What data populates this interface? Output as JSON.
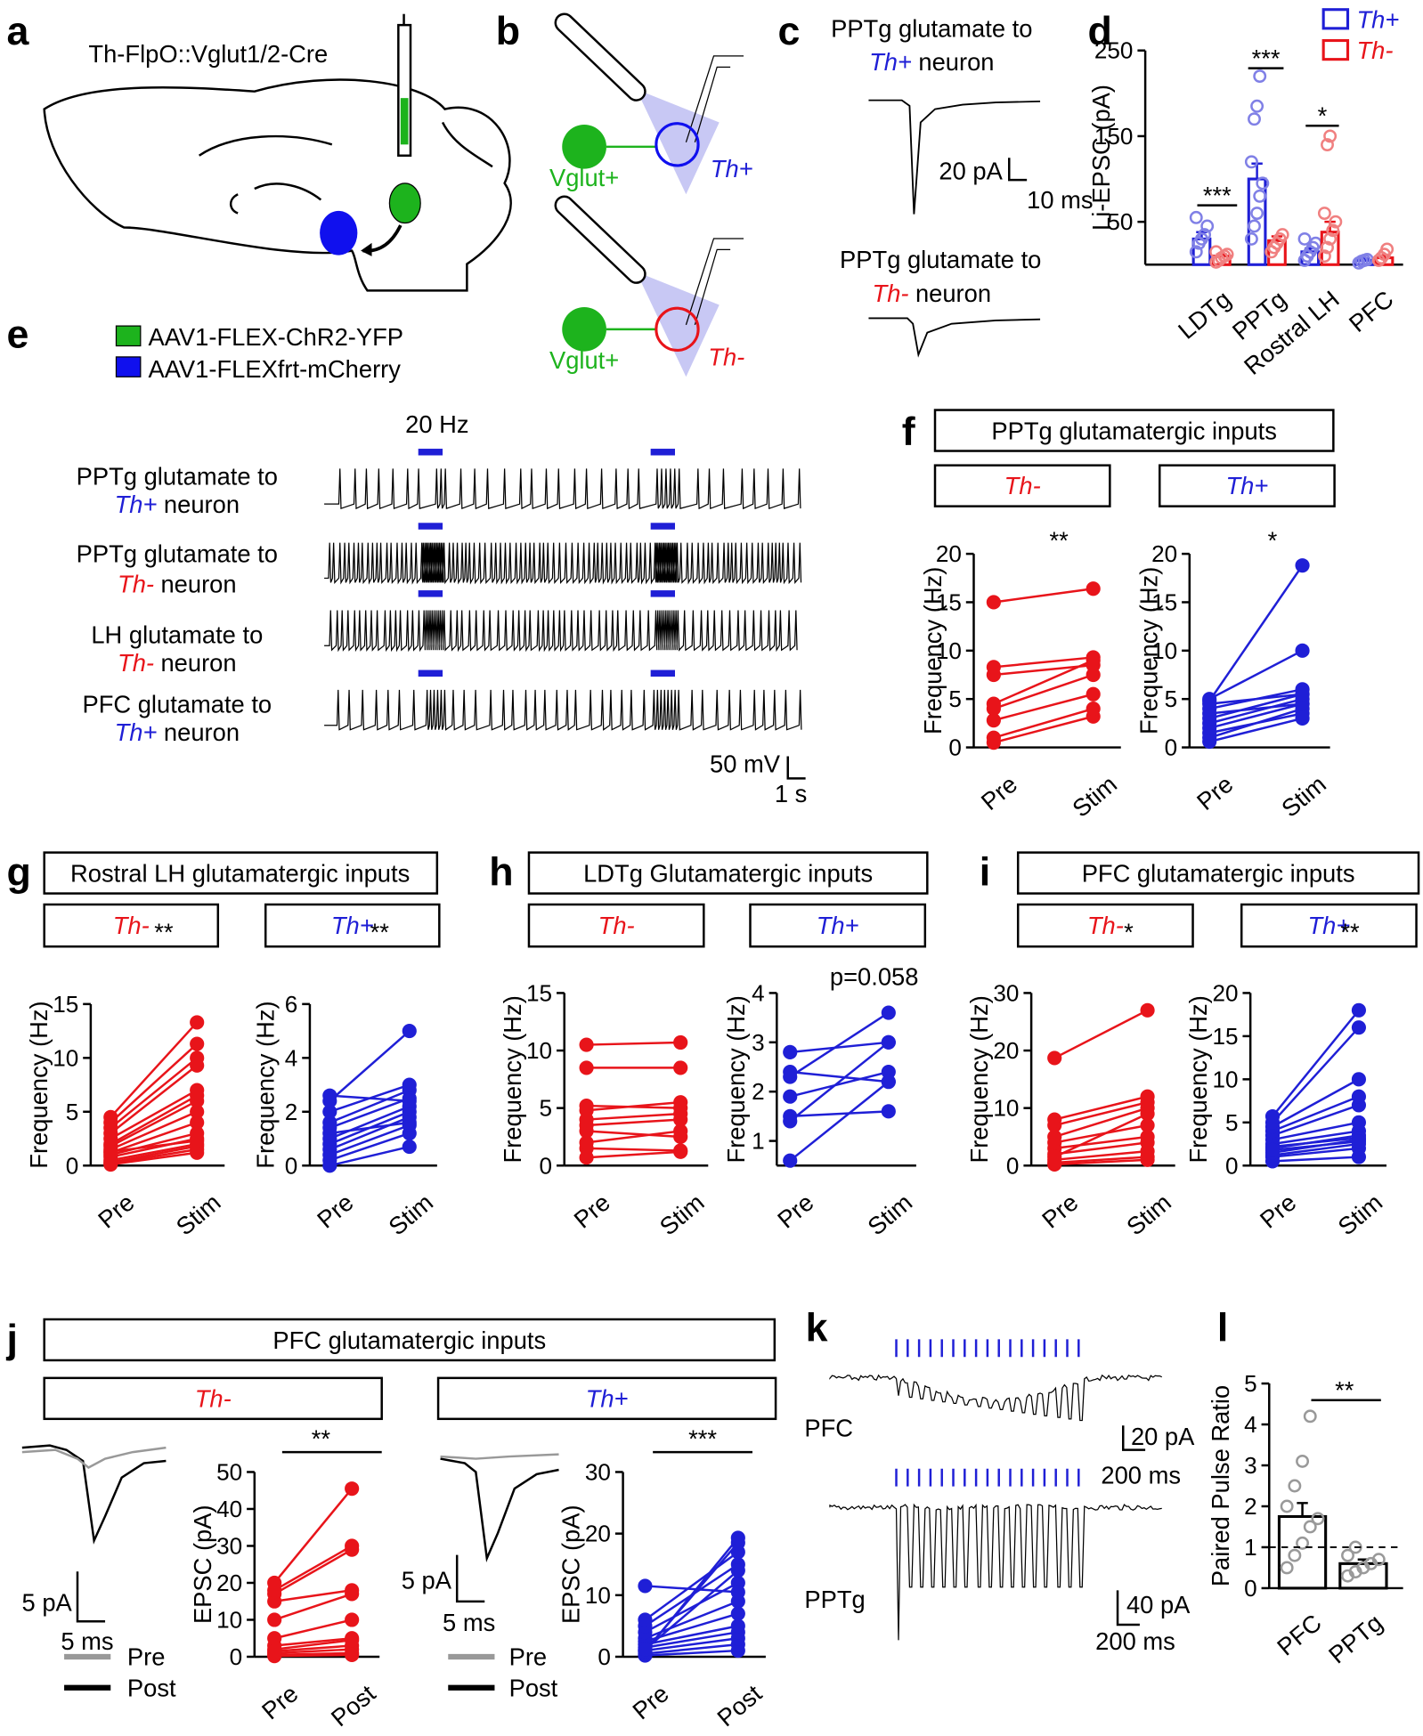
{
  "figure": {
    "panel_letters": [
      "a",
      "b",
      "c",
      "d",
      "e",
      "f",
      "g",
      "h",
      "i",
      "j",
      "k",
      "l"
    ],
    "a": {
      "mouse": "Th-FlpO::Vglut1/2-Cre",
      "legend": [
        "AAV1-FLEX-ChR2-YFP",
        "AAV1-FLEXfrt-mCherry"
      ]
    },
    "b": {
      "source": [
        "Vglut+",
        "Vglut+"
      ],
      "target": [
        "Th+",
        "Th-"
      ]
    },
    "c": {
      "rows": [
        {
          "text": "PPTg glutamate to",
          "cell": "Th+",
          "tail": "neuron"
        },
        {
          "text": "PPTg glutamate to",
          "cell": "Th-",
          "tail": "neuron"
        }
      ],
      "scale": [
        "20 pA",
        "10 ms"
      ]
    },
    "e": {
      "stim": "20 Hz",
      "rows": [
        {
          "text": "PPTg glutamate to",
          "cell": "Th+",
          "tail": "neuron"
        },
        {
          "text": "PPTg glutamate to",
          "cell": "Th-",
          "tail": "neuron"
        },
        {
          "text": "LH glutamate to",
          "cell": "Th-",
          "tail": "neuron"
        },
        {
          "text": "PFC glutamate to",
          "cell": "Th+",
          "tail": "neuron"
        }
      ],
      "scale": [
        "50 mV",
        "1 s"
      ]
    },
    "groups": [
      "PPTg glutamatergic inputs",
      "Rostral LH glutamatergic inputs",
      "LDTg Glutamatergic inputs",
      "PFC glutamatergic inputs",
      "PFC glutamatergic inputs"
    ],
    "j": {
      "legend": [
        "Pre",
        "Post"
      ],
      "scale": [
        [
          "5 pA",
          "5 ms"
        ],
        [
          "5 pA",
          "5 ms"
        ]
      ],
      "legend_th_plus": [
        "Pre",
        "Post"
      ]
    },
    "k": {
      "rows": [
        "PFC",
        "PPTg"
      ],
      "scale": [
        [
          "20 pA",
          "200 ms"
        ],
        [
          "40 pA",
          "200 ms"
        ]
      ]
    }
  },
  "chart_data": [
    {
      "type": "bar",
      "ylabel": "Li-EPSC (pA)",
      "categories": [
        "LDTg",
        "PPTg",
        "Rostral LH",
        "PFC"
      ],
      "series": [
        {
          "name": "Th+",
          "color": "#1f1fd6",
          "point_color": "#8080e6",
          "values": [
            30,
            100,
            15,
            5
          ],
          "errors": [
            8,
            18,
            4,
            2
          ],
          "points": [
            [
              15,
              25,
              30,
              35,
              45,
              55
            ],
            [
              30,
              45,
              60,
              80,
              95,
              120,
              170,
              185,
              220
            ],
            [
              5,
              10,
              15,
              20,
              25,
              30
            ],
            [
              2,
              4,
              5,
              6
            ]
          ]
        },
        {
          "name": "Th-",
          "color": "#e8141a",
          "point_color": "#f08080",
          "values": [
            10,
            28,
            38,
            8
          ],
          "errors": [
            2,
            5,
            12,
            3
          ],
          "points": [
            [
              3,
              5,
              8,
              10,
              12,
              15
            ],
            [
              15,
              20,
              25,
              30,
              35
            ],
            [
              10,
              20,
              30,
              40,
              50,
              60,
              140,
              150
            ],
            [
              5,
              8,
              12,
              18
            ]
          ]
        }
      ],
      "ylim": [
        0,
        250
      ],
      "yticks": [
        50,
        150,
        250
      ],
      "annotations": [
        "***",
        "***",
        "*"
      ],
      "legend": "upper right"
    },
    {
      "type": "paired",
      "title": "Th-",
      "title_color": "#e8141a",
      "color": "#e8141a",
      "annotation": "**",
      "ylabel": "Frequency (Hz)",
      "categories": [
        "Pre",
        "Stim"
      ],
      "pairs": [
        [
          0.5,
          3.2
        ],
        [
          1,
          4
        ],
        [
          2.8,
          5.5
        ],
        [
          4,
          7.5
        ],
        [
          4.5,
          9
        ],
        [
          7.5,
          8.5
        ],
        [
          8.3,
          9.3
        ],
        [
          15,
          16.4
        ]
      ],
      "ylim": [
        0,
        20
      ],
      "yticks": [
        0,
        5,
        10,
        15,
        20
      ]
    },
    {
      "type": "paired",
      "title": "Th+",
      "title_color": "#1f1fd6",
      "color": "#1f1fd6",
      "annotation": "*",
      "ylabel": "Frequency (Hz)",
      "categories": [
        "Pre",
        "Stim"
      ],
      "pairs": [
        [
          0.6,
          3
        ],
        [
          1,
          4
        ],
        [
          1.5,
          3.5
        ],
        [
          2,
          4.5
        ],
        [
          2.5,
          5
        ],
        [
          3,
          5.5
        ],
        [
          3.5,
          4.5
        ],
        [
          4,
          6
        ],
        [
          4.5,
          5.5
        ],
        [
          5,
          10
        ],
        [
          4.8,
          18.8
        ]
      ],
      "ylim": [
        0,
        20
      ],
      "yticks": [
        0,
        5,
        10,
        15,
        20
      ]
    },
    {
      "type": "paired",
      "title": "Th-",
      "title_color": "#e8141a",
      "color": "#e8141a",
      "annotation": "**",
      "ylabel": "Frequency (Hz)",
      "categories": [
        "Pre",
        "Stim"
      ],
      "pairs": [
        [
          0.1,
          1.2
        ],
        [
          0.3,
          1.8
        ],
        [
          0.5,
          2
        ],
        [
          0.8,
          2.5
        ],
        [
          1,
          3
        ],
        [
          1.2,
          4
        ],
        [
          1.5,
          5
        ],
        [
          1.8,
          6
        ],
        [
          2,
          6.5
        ],
        [
          2.5,
          7
        ],
        [
          3,
          9.3
        ],
        [
          3.5,
          10
        ],
        [
          4,
          11.3
        ],
        [
          4.5,
          13.3
        ],
        [
          0.2,
          1.5
        ],
        [
          1.3,
          2.3
        ]
      ],
      "ylim": [
        0,
        15
      ],
      "yticks": [
        0,
        5,
        10,
        15
      ]
    },
    {
      "type": "paired",
      "title": "Th+",
      "title_color": "#1f1fd6",
      "color": "#1f1fd6",
      "annotation": "**",
      "ylabel": "Frequency (Hz)",
      "categories": [
        "Pre",
        "Stim"
      ],
      "pairs": [
        [
          0,
          0.7
        ],
        [
          0.2,
          1.2
        ],
        [
          0.4,
          1.5
        ],
        [
          0.6,
          1.8
        ],
        [
          0.8,
          2
        ],
        [
          1,
          2.2
        ],
        [
          1.2,
          1.6
        ],
        [
          1.4,
          2.5
        ],
        [
          1.6,
          2.8
        ],
        [
          2,
          3
        ],
        [
          2.6,
          2.4
        ],
        [
          2.4,
          5
        ]
      ],
      "ylim": [
        0,
        6
      ],
      "yticks": [
        0,
        2,
        4,
        6
      ]
    },
    {
      "type": "paired",
      "title": "Th-",
      "title_color": "#e8141a",
      "color": "#e8141a",
      "ylabel": "Frequency (Hz)",
      "categories": [
        "Pre",
        "Stim"
      ],
      "pairs": [
        [
          0.7,
          1.2
        ],
        [
          1.5,
          1.3
        ],
        [
          2,
          3
        ],
        [
          3,
          2.5
        ],
        [
          3.5,
          4
        ],
        [
          4,
          4.5
        ],
        [
          4.8,
          5.5
        ],
        [
          5.2,
          5
        ],
        [
          8.5,
          8.5
        ],
        [
          10.5,
          10.7
        ]
      ],
      "ylim": [
        0,
        15
      ],
      "yticks": [
        0,
        5,
        10,
        15
      ]
    },
    {
      "type": "paired",
      "title": "Th+",
      "title_color": "#1f1fd6",
      "color": "#1f1fd6",
      "annotation": "p=0.058",
      "ylabel": "Frequency (Hz)",
      "categories": [
        "Pre",
        "Stim"
      ],
      "pairs": [
        [
          0.6,
          2.2
        ],
        [
          1.5,
          1.6
        ],
        [
          1.4,
          3
        ],
        [
          1.9,
          2.4
        ],
        [
          2.3,
          3.6
        ],
        [
          2.4,
          2.2
        ],
        [
          2.8,
          3
        ]
      ],
      "ylim": [
        0.5,
        4
      ],
      "yticks": [
        1,
        2,
        3,
        4
      ]
    },
    {
      "type": "paired",
      "title": "Th-",
      "title_color": "#e8141a",
      "color": "#e8141a",
      "annotation": "*",
      "ylabel": "Frequency (Hz)",
      "categories": [
        "Pre",
        "Stim"
      ],
      "pairs": [
        [
          0.5,
          1.5
        ],
        [
          1,
          2.5
        ],
        [
          2,
          4
        ],
        [
          3,
          5
        ],
        [
          4,
          7
        ],
        [
          5,
          10
        ],
        [
          7,
          11
        ],
        [
          8,
          12
        ],
        [
          18.7,
          27
        ],
        [
          0.2,
          1
        ],
        [
          1.5,
          9
        ]
      ],
      "ylim": [
        0,
        30
      ],
      "yticks": [
        0,
        10,
        20,
        30
      ]
    },
    {
      "type": "paired",
      "title": "Th+",
      "title_color": "#1f1fd6",
      "color": "#1f1fd6",
      "annotation": "**",
      "ylabel": "Frequency (Hz)",
      "categories": [
        "Pre",
        "Stim"
      ],
      "pairs": [
        [
          0.5,
          1
        ],
        [
          1,
          2
        ],
        [
          1.2,
          2.5
        ],
        [
          1.5,
          3
        ],
        [
          2,
          3.5
        ],
        [
          2.5,
          4
        ],
        [
          3,
          5
        ],
        [
          3.5,
          7
        ],
        [
          4,
          8
        ],
        [
          4.5,
          10
        ],
        [
          5,
          16
        ],
        [
          5.7,
          18
        ],
        [
          2.2,
          3.2
        ],
        [
          1.8,
          2.8
        ]
      ],
      "ylim": [
        0,
        20
      ],
      "yticks": [
        0,
        5,
        10,
        15,
        20
      ]
    },
    {
      "type": "paired",
      "title": "Th-",
      "title_color": "#e8141a",
      "color": "#e8141a",
      "annotation": "**",
      "ylabel": "EPSC (pA)",
      "categories": [
        "Pre",
        "Post"
      ],
      "pairs": [
        [
          0.5,
          1
        ],
        [
          1,
          2
        ],
        [
          1.5,
          3
        ],
        [
          2,
          4.5
        ],
        [
          3,
          5
        ],
        [
          5,
          10
        ],
        [
          10,
          17
        ],
        [
          15,
          18
        ],
        [
          17,
          29
        ],
        [
          18,
          30
        ],
        [
          20,
          45.5
        ],
        [
          0.2,
          0.5
        ]
      ],
      "ylim": [
        0,
        50
      ],
      "yticks": [
        0,
        10,
        20,
        30,
        40,
        50
      ]
    },
    {
      "type": "paired",
      "title": "Th+",
      "title_color": "#1f1fd6",
      "color": "#1f1fd6",
      "annotation": "***",
      "ylabel": "EPSC (pA)",
      "categories": [
        "Pre",
        "Post"
      ],
      "pairs": [
        [
          0.2,
          1
        ],
        [
          0.5,
          2
        ],
        [
          1,
          3
        ],
        [
          1.5,
          4
        ],
        [
          2,
          5
        ],
        [
          2.5,
          7
        ],
        [
          3,
          9
        ],
        [
          4,
          12
        ],
        [
          5,
          15
        ],
        [
          6,
          17
        ],
        [
          11.5,
          10.5
        ],
        [
          1,
          18.5
        ],
        [
          0.8,
          19.3
        ],
        [
          1.2,
          14
        ]
      ],
      "ylim": [
        0,
        30
      ],
      "yticks": [
        0,
        10,
        20,
        30
      ]
    },
    {
      "type": "bar",
      "ylabel": "Paired Pulse Ratio",
      "categories": [
        "PFC",
        "PPTg"
      ],
      "values": [
        1.75,
        0.6
      ],
      "errors": [
        0.33,
        0.1
      ],
      "points": [
        [
          0.5,
          0.8,
          1.1,
          1.5,
          1.7,
          2,
          2.5,
          3.1,
          4.2
        ],
        [
          0.3,
          0.4,
          0.5,
          0.6,
          0.7,
          0.8,
          1
        ]
      ],
      "color": "#000000",
      "point_color": "#999999",
      "ylim": [
        0,
        5
      ],
      "yticks": [
        0,
        1,
        2,
        3,
        4,
        5
      ],
      "reference_line": 1,
      "annotations": [
        "**"
      ]
    }
  ]
}
